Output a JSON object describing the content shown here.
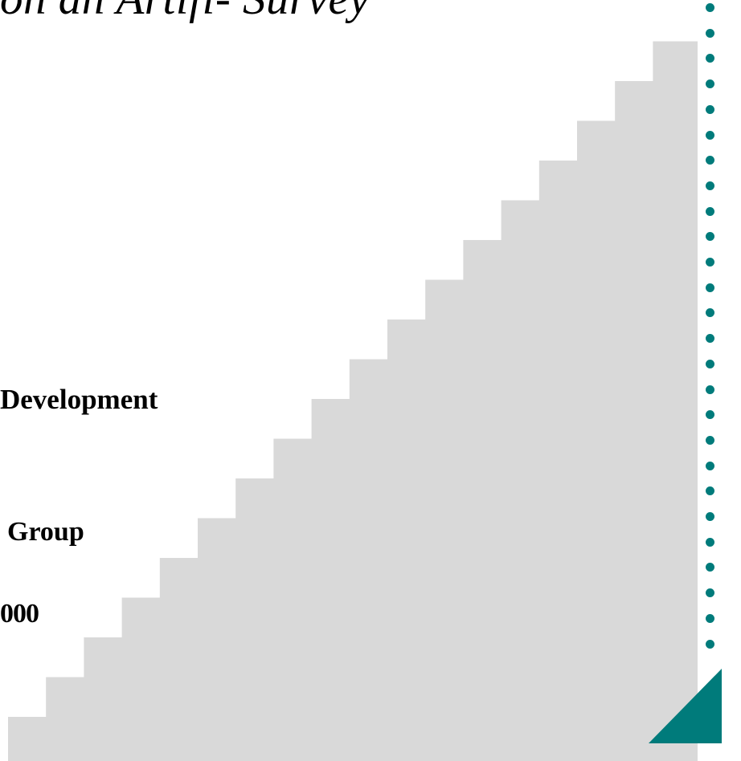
{
  "slide": {
    "title_fragment": "on an Artifi- Survey",
    "department_fragment": "Development",
    "group_fragment": "Group",
    "date_fragment": "000"
  },
  "decoration": {
    "staircase_color": "#d9d9d9",
    "accent_color": "#007b7b",
    "dot_count": 26
  }
}
